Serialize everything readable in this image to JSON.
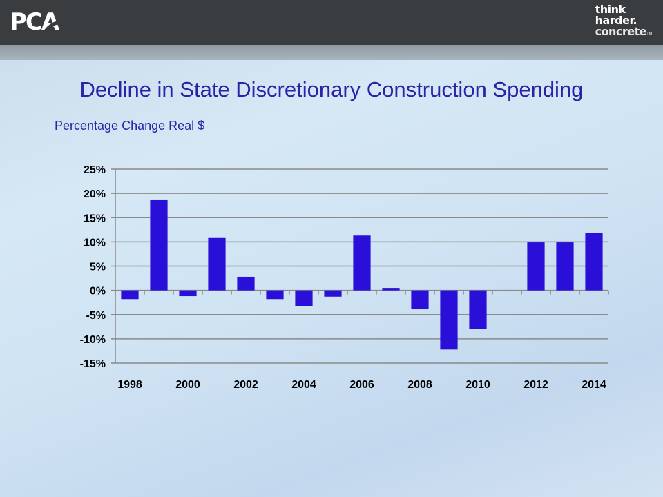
{
  "header": {
    "logo_left": "PCA",
    "logo_right": [
      "think",
      "harder.",
      "concrete"
    ],
    "logo_right_tm": "TM"
  },
  "slide": {
    "title": "Decline in State Discretionary Construction Spending",
    "subtitle": "Percentage Change Real $"
  },
  "colors": {
    "bar": "#2a0fd8",
    "title": "#2b22a8",
    "header": "#3a3d40"
  },
  "chart_data": {
    "type": "bar",
    "title": "",
    "xlabel": "",
    "ylabel": "",
    "categories": [
      "1998",
      "1999",
      "2000",
      "2001",
      "2002",
      "2003",
      "2004",
      "2005",
      "2006",
      "2007",
      "2008",
      "2009",
      "2010",
      "2011",
      "2012",
      "2013",
      "2014"
    ],
    "values": [
      -1.8,
      18.6,
      -1.2,
      10.8,
      2.8,
      -1.8,
      -3.2,
      -1.3,
      11.3,
      0.5,
      -3.9,
      -12.2,
      -8.0,
      null,
      9.9,
      9.9,
      11.9
    ],
    "x_tick_labels": [
      "1998",
      "2000",
      "2002",
      "2004",
      "2006",
      "2008",
      "2010",
      "2012",
      "2014"
    ],
    "y_tick_labels": [
      "25%",
      "20%",
      "15%",
      "10%",
      "5%",
      "0%",
      "-5%",
      "-10%",
      "-15%"
    ],
    "ylim": [
      -15,
      25
    ],
    "grid": true,
    "legend": "none"
  }
}
